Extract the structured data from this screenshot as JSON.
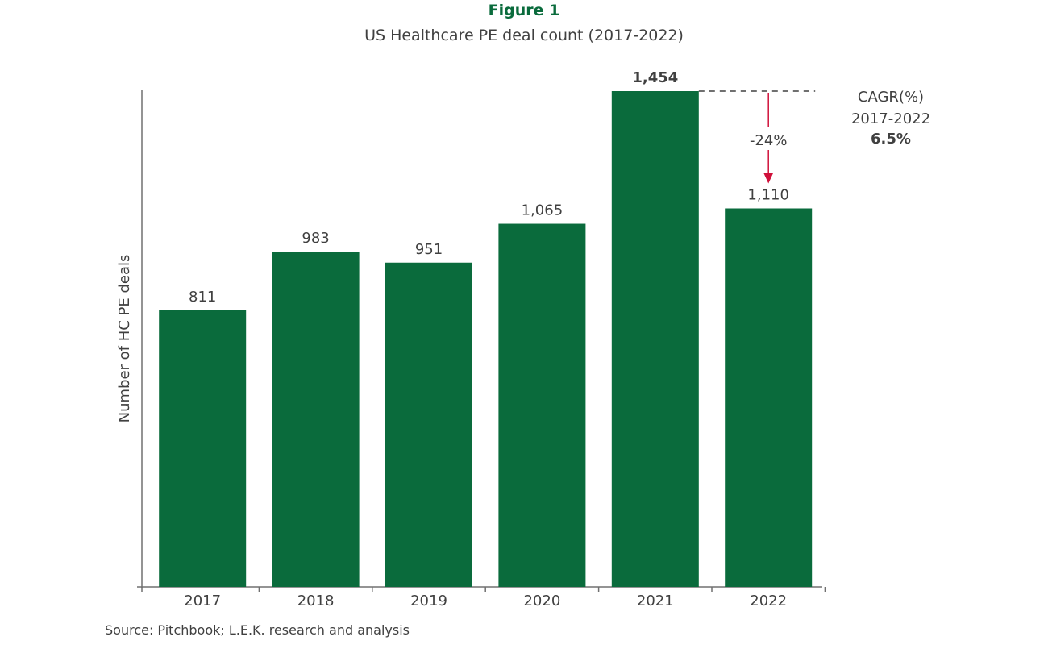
{
  "chart_data": {
    "type": "bar",
    "title": "Figure 1",
    "subtitle": "US Healthcare PE deal count (2017-2022)",
    "xlabel": "",
    "ylabel": "Number of HC PE deals",
    "categories": [
      "2017",
      "2018",
      "2019",
      "2020",
      "2021",
      "2022"
    ],
    "values": [
      811,
      983,
      951,
      1065,
      1454,
      1110
    ],
    "data_labels": [
      "811",
      "983",
      "951",
      "1,065",
      "1,454",
      "1,110"
    ],
    "highlight_label_index": 4,
    "ylim": [
      0,
      1454
    ],
    "grid": false,
    "bar_color": "#0a6b3c",
    "annotation": {
      "text": "-24%",
      "from": "2021",
      "to": "2022",
      "color": "#d0103a"
    },
    "cagr": {
      "label": "CAGR(%)",
      "period": "2017-2022",
      "value": "6.5%"
    },
    "source": "Source: Pitchbook; L.E.K. research and analysis"
  }
}
